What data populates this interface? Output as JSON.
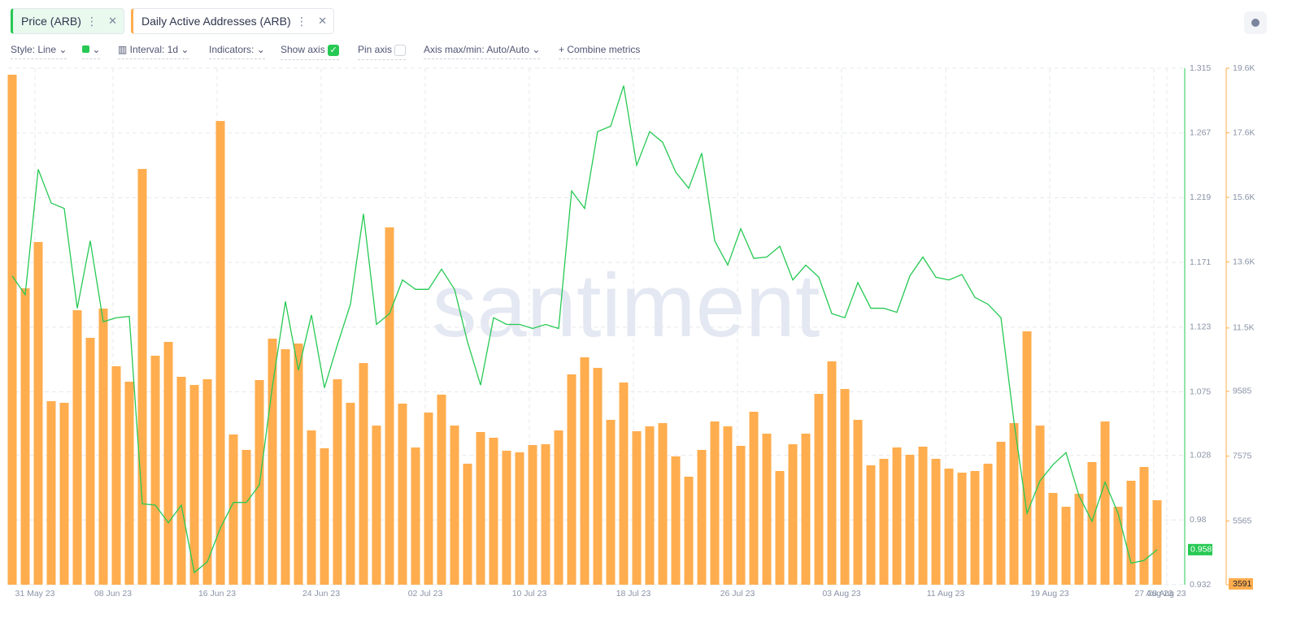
{
  "toolbar": {
    "style": "Style: Line",
    "interval": "Interval: 1d",
    "indicators": "Indicators:",
    "show_axis": "Show axis",
    "pin_axis": "Pin axis",
    "axis_maxmin": "Axis max/min: Auto/Auto",
    "combine": "Combine metrics"
  },
  "watermark": "santiment",
  "chart_data": {
    "type": "combo",
    "categories": [
      null,
      null,
      "31 May 23",
      null,
      null,
      null,
      null,
      null,
      "08 Jun 23",
      null,
      null,
      null,
      null,
      null,
      null,
      null,
      "16 Jun 23",
      null,
      null,
      null,
      null,
      null,
      null,
      null,
      "24 Jun 23",
      null,
      null,
      null,
      null,
      null,
      null,
      null,
      "02 Jul 23",
      null,
      null,
      null,
      null,
      null,
      null,
      null,
      "10 Jul 23",
      null,
      null,
      null,
      null,
      null,
      null,
      null,
      "18 Jul 23",
      null,
      null,
      null,
      null,
      null,
      null,
      null,
      "26 Jul 23",
      null,
      null,
      null,
      null,
      null,
      null,
      null,
      "03 Aug 23",
      null,
      null,
      null,
      null,
      null,
      null,
      null,
      "11 Aug 23",
      null,
      null,
      null,
      null,
      null,
      null,
      null,
      "19 Aug 23",
      null,
      null,
      null,
      null,
      null,
      null,
      null,
      "27 Aug 23",
      "28 Aug 23"
    ],
    "series": [
      {
        "name": "Price (ARB)",
        "type": "line",
        "axis": "y",
        "color": "#26c953",
        "values": [
          1.161,
          1.147,
          1.24,
          1.215,
          1.211,
          1.137,
          1.187,
          1.127,
          1.13,
          1.131,
          0.992,
          0.991,
          0.978,
          0.991,
          0.941,
          0.949,
          0.974,
          0.993,
          0.993,
          1.006,
          1.079,
          1.142,
          1.091,
          1.132,
          1.078,
          1.11,
          1.14,
          1.207,
          1.125,
          1.133,
          1.158,
          1.151,
          1.151,
          1.166,
          1.151,
          1.112,
          1.08,
          1.13,
          1.125,
          1.125,
          1.122,
          1.125,
          1.122,
          1.224,
          1.211,
          1.268,
          1.272,
          1.302,
          1.243,
          1.268,
          1.26,
          1.238,
          1.226,
          1.252,
          1.187,
          1.169,
          1.196,
          1.174,
          1.175,
          1.183,
          1.158,
          1.169,
          1.16,
          1.133,
          1.13,
          1.156,
          1.137,
          1.137,
          1.134,
          1.161,
          1.175,
          1.16,
          1.158,
          1.162,
          1.145,
          1.14,
          1.13,
          1.053,
          0.985,
          1.009,
          1.021,
          1.03,
          0.998,
          0.979,
          1.008,
          0.985,
          0.948,
          0.95,
          0.958,
          null
        ]
      },
      {
        "name": "Daily Active Addresses (ARB)",
        "type": "bar",
        "axis": "y2",
        "color": "#ffad4e",
        "values": [
          19398,
          12778,
          14213,
          9279,
          9229,
          12098,
          11243,
          12149,
          10362,
          9884,
          16478,
          10689,
          11117,
          10035,
          9783,
          9959,
          17963,
          8247,
          7769,
          9934,
          11218,
          10890,
          11066,
          8373,
          7820,
          9959,
          9229,
          10462,
          8524,
          14666,
          9204,
          7845,
          8927,
          9481,
          8524,
          7341,
          8323,
          8147,
          7744,
          7694,
          7920,
          7945,
          8373,
          10110,
          10639,
          10311,
          8701,
          9858,
          8348,
          8499,
          8600,
          7568,
          6939,
          7769,
          8650,
          8499,
          7895,
          8952,
          8273,
          7115,
          7945,
          8273,
          9506,
          10513,
          9657,
          8701,
          7291,
          7492,
          7845,
          7618,
          7870,
          7492,
          7190,
          7064,
          7115,
          7341,
          8021,
          8600,
          11444,
          8524,
          6435,
          6007,
          6410,
          7392,
          8650,
          6007,
          6813,
          7241,
          6209,
          null
        ]
      }
    ],
    "ylim": [
      0.932,
      1.315
    ],
    "yticks": [
      0.932,
      0.98,
      1.028,
      1.075,
      1.123,
      1.171,
      1.219,
      1.267,
      1.315
    ],
    "y2lim": [
      3591,
      19600
    ],
    "y2ticks": [
      3591,
      5565,
      7575,
      9585,
      {
        "value": 11549,
        "label": "11.5K"
      },
      {
        "value": 13596,
        "label": "13.6K"
      },
      {
        "value": 15597,
        "label": "15.6K"
      },
      {
        "value": 17598,
        "label": "17.6K"
      },
      {
        "value": 19600,
        "label": "19.6K"
      }
    ],
    "grid": true
  }
}
